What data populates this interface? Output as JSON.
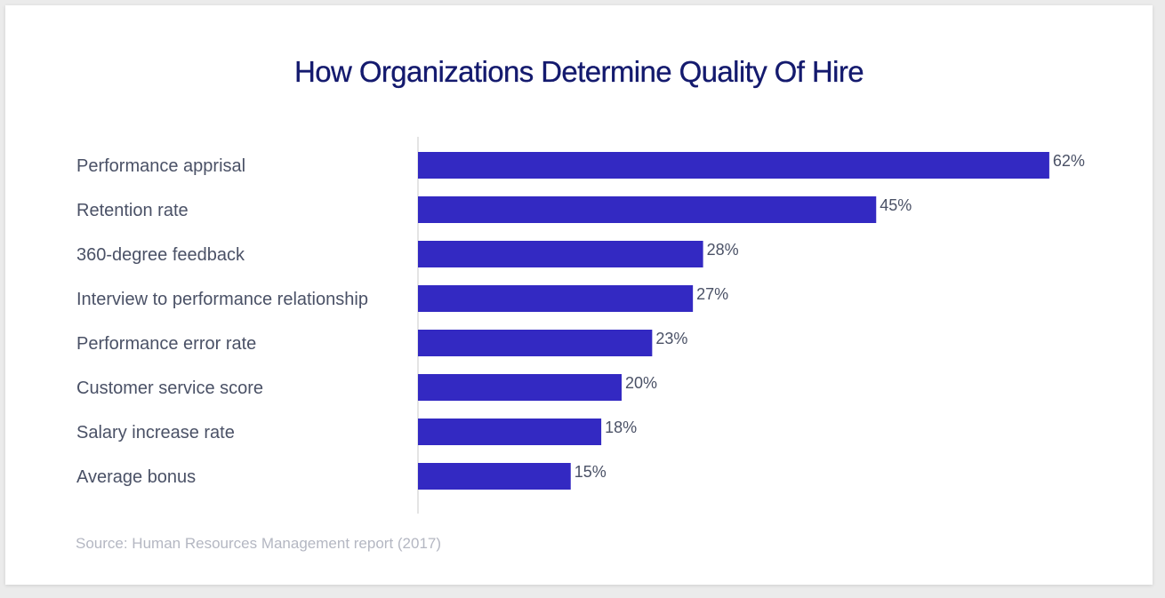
{
  "title": "How Organizations Determine Quality Of Hire",
  "source": "Source: Human Resources Management report (2017)",
  "colors": {
    "bar": "#3329c2",
    "title": "#141a6e",
    "label": "#4a5166",
    "axis": "#c8c8c8",
    "source": "#b4b7c2"
  },
  "chart_data": {
    "type": "bar",
    "orientation": "horizontal",
    "title": "How Organizations Determine Quality Of Hire",
    "xlabel": "",
    "ylabel": "",
    "categories": [
      "Performance apprisal",
      "Retention rate",
      "360-degree feedback",
      "Interview to performance relationship",
      "Performance error rate",
      "Customer service score",
      "Salary increase rate",
      "Average bonus"
    ],
    "values": [
      62,
      45,
      28,
      27,
      23,
      20,
      18,
      15
    ],
    "value_labels": [
      "62%",
      "45%",
      "28%",
      "27%",
      "23%",
      "20%",
      "18%",
      "15%"
    ],
    "unit": "%",
    "grid": false,
    "legend": "none"
  }
}
